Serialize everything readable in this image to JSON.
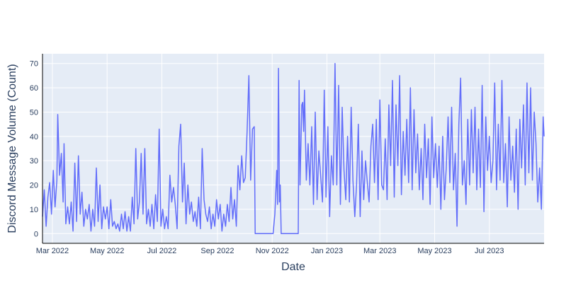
{
  "chart_data": {
    "type": "line",
    "title": "",
    "xlabel": "Date",
    "ylabel": "Discord Message Volume (Count)",
    "x_start": "2022-02-18",
    "x_end": "2023-08-31",
    "ylim": [
      -4,
      74
    ],
    "x_ticks": [
      {
        "date": "2022-03-01",
        "label": "Mar 2022"
      },
      {
        "date": "2022-05-01",
        "label": "May 2022"
      },
      {
        "date": "2022-07-01",
        "label": "Jul 2022"
      },
      {
        "date": "2022-09-01",
        "label": "Sep 2022"
      },
      {
        "date": "2022-11-01",
        "label": "Nov 2022"
      },
      {
        "date": "2023-01-01",
        "label": "Jan 2023"
      },
      {
        "date": "2023-03-01",
        "label": "Mar 2023"
      },
      {
        "date": "2023-05-01",
        "label": "May 2023"
      },
      {
        "date": "2023-07-01",
        "label": "Jul 2023"
      }
    ],
    "y_ticks": [
      0,
      10,
      20,
      30,
      40,
      50,
      60,
      70
    ],
    "grid": true,
    "line_color": "#636efa",
    "plot_bg": "#e5ecf6",
    "series": [
      {
        "name": "",
        "points": [
          [
            "2022-02-18",
            7
          ],
          [
            "2022-02-20",
            18
          ],
          [
            "2022-02-22",
            3
          ],
          [
            "2022-02-24",
            15
          ],
          [
            "2022-02-26",
            21
          ],
          [
            "2022-02-28",
            8
          ],
          [
            "2022-03-02",
            26
          ],
          [
            "2022-03-04",
            11
          ],
          [
            "2022-03-06",
            22
          ],
          [
            "2022-03-07",
            49
          ],
          [
            "2022-03-09",
            24
          ],
          [
            "2022-03-11",
            33
          ],
          [
            "2022-03-13",
            13
          ],
          [
            "2022-03-14",
            37
          ],
          [
            "2022-03-16",
            4
          ],
          [
            "2022-03-18",
            11
          ],
          [
            "2022-03-20",
            4
          ],
          [
            "2022-03-22",
            13
          ],
          [
            "2022-03-24",
            1
          ],
          [
            "2022-03-26",
            29
          ],
          [
            "2022-03-28",
            5
          ],
          [
            "2022-03-30",
            32
          ],
          [
            "2022-04-01",
            8
          ],
          [
            "2022-04-03",
            17
          ],
          [
            "2022-04-05",
            3
          ],
          [
            "2022-04-07",
            10
          ],
          [
            "2022-04-09",
            6
          ],
          [
            "2022-04-11",
            12
          ],
          [
            "2022-04-13",
            1
          ],
          [
            "2022-04-15",
            10
          ],
          [
            "2022-04-17",
            3
          ],
          [
            "2022-04-19",
            27
          ],
          [
            "2022-04-21",
            5
          ],
          [
            "2022-04-23",
            20
          ],
          [
            "2022-04-25",
            2
          ],
          [
            "2022-04-27",
            11
          ],
          [
            "2022-04-29",
            6
          ],
          [
            "2022-05-01",
            11
          ],
          [
            "2022-05-03",
            2
          ],
          [
            "2022-05-05",
            14
          ],
          [
            "2022-05-07",
            3
          ],
          [
            "2022-05-09",
            5
          ],
          [
            "2022-05-11",
            2
          ],
          [
            "2022-05-13",
            4
          ],
          [
            "2022-05-15",
            1
          ],
          [
            "2022-05-17",
            8
          ],
          [
            "2022-05-19",
            2
          ],
          [
            "2022-05-21",
            9
          ],
          [
            "2022-05-23",
            1
          ],
          [
            "2022-05-25",
            7
          ],
          [
            "2022-05-27",
            1
          ],
          [
            "2022-05-29",
            15
          ],
          [
            "2022-05-31",
            4
          ],
          [
            "2022-06-02",
            35
          ],
          [
            "2022-06-04",
            6
          ],
          [
            "2022-06-06",
            13
          ],
          [
            "2022-06-08",
            33
          ],
          [
            "2022-06-10",
            8
          ],
          [
            "2022-06-12",
            35
          ],
          [
            "2022-06-14",
            4
          ],
          [
            "2022-06-16",
            10
          ],
          [
            "2022-06-18",
            3
          ],
          [
            "2022-06-20",
            12
          ],
          [
            "2022-06-22",
            2
          ],
          [
            "2022-06-24",
            16
          ],
          [
            "2022-06-26",
            5
          ],
          [
            "2022-06-28",
            43
          ],
          [
            "2022-06-30",
            3
          ],
          [
            "2022-07-02",
            10
          ],
          [
            "2022-07-04",
            2
          ],
          [
            "2022-07-06",
            7
          ],
          [
            "2022-07-08",
            2
          ],
          [
            "2022-07-10",
            24
          ],
          [
            "2022-07-12",
            13
          ],
          [
            "2022-07-14",
            19
          ],
          [
            "2022-07-16",
            12
          ],
          [
            "2022-07-18",
            2
          ],
          [
            "2022-07-20",
            36
          ],
          [
            "2022-07-22",
            45
          ],
          [
            "2022-07-24",
            13
          ],
          [
            "2022-07-26",
            29
          ],
          [
            "2022-07-28",
            4
          ],
          [
            "2022-07-30",
            20
          ],
          [
            "2022-08-01",
            8
          ],
          [
            "2022-08-03",
            13
          ],
          [
            "2022-08-05",
            5
          ],
          [
            "2022-08-07",
            9
          ],
          [
            "2022-08-09",
            3
          ],
          [
            "2022-08-11",
            15
          ],
          [
            "2022-08-13",
            2
          ],
          [
            "2022-08-15",
            35
          ],
          [
            "2022-08-17",
            14
          ],
          [
            "2022-08-19",
            8
          ],
          [
            "2022-08-21",
            5
          ],
          [
            "2022-08-23",
            11
          ],
          [
            "2022-08-25",
            2
          ],
          [
            "2022-08-27",
            8
          ],
          [
            "2022-08-29",
            3
          ],
          [
            "2022-08-31",
            14
          ],
          [
            "2022-09-02",
            6
          ],
          [
            "2022-09-04",
            12
          ],
          [
            "2022-09-06",
            1
          ],
          [
            "2022-09-08",
            8
          ],
          [
            "2022-09-10",
            3
          ],
          [
            "2022-09-12",
            12
          ],
          [
            "2022-09-14",
            5
          ],
          [
            "2022-09-16",
            19
          ],
          [
            "2022-09-18",
            6
          ],
          [
            "2022-09-20",
            14
          ],
          [
            "2022-09-22",
            3
          ],
          [
            "2022-09-24",
            28
          ],
          [
            "2022-09-26",
            18
          ],
          [
            "2022-09-28",
            32
          ],
          [
            "2022-09-30",
            21
          ],
          [
            "2022-10-02",
            23
          ],
          [
            "2022-10-04",
            42
          ],
          [
            "2022-10-06",
            65
          ],
          [
            "2022-10-08",
            22
          ],
          [
            "2022-10-10",
            43
          ],
          [
            "2022-10-12",
            44
          ],
          [
            "2022-10-13",
            0
          ],
          [
            "2022-10-20",
            0
          ],
          [
            "2022-10-27",
            0
          ],
          [
            "2022-11-02",
            0
          ],
          [
            "2022-11-04",
            8
          ],
          [
            "2022-11-06",
            26
          ],
          [
            "2022-11-07",
            12
          ],
          [
            "2022-11-08",
            68
          ],
          [
            "2022-11-09",
            13
          ],
          [
            "2022-11-10",
            20
          ],
          [
            "2022-11-11",
            0
          ],
          [
            "2022-11-20",
            0
          ],
          [
            "2022-11-30",
            0
          ],
          [
            "2022-12-01",
            63
          ],
          [
            "2022-12-02",
            20
          ],
          [
            "2022-12-04",
            53
          ],
          [
            "2022-12-05",
            54
          ],
          [
            "2022-12-06",
            42
          ],
          [
            "2022-12-07",
            59
          ],
          [
            "2022-12-09",
            22
          ],
          [
            "2022-12-11",
            37
          ],
          [
            "2022-12-13",
            20
          ],
          [
            "2022-12-15",
            44
          ],
          [
            "2022-12-17",
            12
          ],
          [
            "2022-12-19",
            50
          ],
          [
            "2022-12-21",
            14
          ],
          [
            "2022-12-23",
            34
          ],
          [
            "2022-12-25",
            24
          ],
          [
            "2022-12-27",
            13
          ],
          [
            "2022-12-29",
            59
          ],
          [
            "2022-12-31",
            15
          ],
          [
            "2023-01-02",
            44
          ],
          [
            "2023-01-04",
            7
          ],
          [
            "2023-01-06",
            32
          ],
          [
            "2023-01-08",
            20
          ],
          [
            "2023-01-10",
            70
          ],
          [
            "2023-01-12",
            20
          ],
          [
            "2023-01-14",
            61
          ],
          [
            "2023-01-16",
            12
          ],
          [
            "2023-01-18",
            52
          ],
          [
            "2023-01-20",
            26
          ],
          [
            "2023-01-22",
            14
          ],
          [
            "2023-01-24",
            40
          ],
          [
            "2023-01-26",
            13
          ],
          [
            "2023-01-28",
            52
          ],
          [
            "2023-01-30",
            22
          ],
          [
            "2023-02-01",
            7
          ],
          [
            "2023-02-03",
            20
          ],
          [
            "2023-02-05",
            45
          ],
          [
            "2023-02-07",
            7
          ],
          [
            "2023-02-09",
            34
          ],
          [
            "2023-02-11",
            14
          ],
          [
            "2023-02-13",
            30
          ],
          [
            "2023-02-15",
            21
          ],
          [
            "2023-02-17",
            13
          ],
          [
            "2023-02-19",
            36
          ],
          [
            "2023-02-21",
            45
          ],
          [
            "2023-02-23",
            21
          ],
          [
            "2023-02-25",
            47
          ],
          [
            "2023-02-27",
            14
          ],
          [
            "2023-03-01",
            55
          ],
          [
            "2023-03-03",
            20
          ],
          [
            "2023-03-05",
            18
          ],
          [
            "2023-03-07",
            39
          ],
          [
            "2023-03-09",
            14
          ],
          [
            "2023-03-11",
            53
          ],
          [
            "2023-03-13",
            28
          ],
          [
            "2023-03-15",
            63
          ],
          [
            "2023-03-17",
            15
          ],
          [
            "2023-03-19",
            53
          ],
          [
            "2023-03-21",
            28
          ],
          [
            "2023-03-23",
            65
          ],
          [
            "2023-03-25",
            16
          ],
          [
            "2023-03-27",
            42
          ],
          [
            "2023-03-29",
            24
          ],
          [
            "2023-03-31",
            47
          ],
          [
            "2023-04-02",
            21
          ],
          [
            "2023-04-04",
            60
          ],
          [
            "2023-04-06",
            18
          ],
          [
            "2023-04-08",
            51
          ],
          [
            "2023-04-10",
            25
          ],
          [
            "2023-04-12",
            41
          ],
          [
            "2023-04-14",
            18
          ],
          [
            "2023-04-16",
            35
          ],
          [
            "2023-04-18",
            14
          ],
          [
            "2023-04-20",
            45
          ],
          [
            "2023-04-22",
            23
          ],
          [
            "2023-04-24",
            39
          ],
          [
            "2023-04-26",
            12
          ],
          [
            "2023-04-28",
            48
          ],
          [
            "2023-04-30",
            23
          ],
          [
            "2023-05-02",
            37
          ],
          [
            "2023-05-04",
            19
          ],
          [
            "2023-05-06",
            36
          ],
          [
            "2023-05-08",
            10
          ],
          [
            "2023-05-10",
            40
          ],
          [
            "2023-05-12",
            14
          ],
          [
            "2023-05-14",
            27
          ],
          [
            "2023-05-16",
            48
          ],
          [
            "2023-05-18",
            21
          ],
          [
            "2023-05-20",
            52
          ],
          [
            "2023-05-22",
            18
          ],
          [
            "2023-05-24",
            33
          ],
          [
            "2023-05-26",
            3
          ],
          [
            "2023-05-28",
            45
          ],
          [
            "2023-05-30",
            64
          ],
          [
            "2023-06-01",
            20
          ],
          [
            "2023-06-03",
            30
          ],
          [
            "2023-06-05",
            12
          ],
          [
            "2023-06-07",
            47
          ],
          [
            "2023-06-09",
            20
          ],
          [
            "2023-06-11",
            51
          ],
          [
            "2023-06-13",
            25
          ],
          [
            "2023-06-15",
            52
          ],
          [
            "2023-06-17",
            18
          ],
          [
            "2023-06-19",
            43
          ],
          [
            "2023-06-21",
            19
          ],
          [
            "2023-06-23",
            61
          ],
          [
            "2023-06-25",
            9
          ],
          [
            "2023-06-27",
            48
          ],
          [
            "2023-06-29",
            26
          ],
          [
            "2023-07-01",
            40
          ],
          [
            "2023-07-03",
            21
          ],
          [
            "2023-07-05",
            30
          ],
          [
            "2023-07-07",
            62
          ],
          [
            "2023-07-09",
            18
          ],
          [
            "2023-07-11",
            45
          ],
          [
            "2023-07-13",
            22
          ],
          [
            "2023-07-15",
            63
          ],
          [
            "2023-07-17",
            21
          ],
          [
            "2023-07-19",
            37
          ],
          [
            "2023-07-21",
            11
          ],
          [
            "2023-07-23",
            48
          ],
          [
            "2023-07-25",
            22
          ],
          [
            "2023-07-27",
            36
          ],
          [
            "2023-07-29",
            17
          ],
          [
            "2023-07-31",
            43
          ],
          [
            "2023-08-02",
            10
          ],
          [
            "2023-08-04",
            47
          ],
          [
            "2023-08-06",
            27
          ],
          [
            "2023-08-08",
            53
          ],
          [
            "2023-08-10",
            20
          ],
          [
            "2023-08-12",
            62
          ],
          [
            "2023-08-14",
            25
          ],
          [
            "2023-08-16",
            60
          ],
          [
            "2023-08-18",
            22
          ],
          [
            "2023-08-20",
            50
          ],
          [
            "2023-08-22",
            37
          ],
          [
            "2023-08-24",
            13
          ],
          [
            "2023-08-26",
            27
          ],
          [
            "2023-08-28",
            10
          ],
          [
            "2023-08-30",
            48
          ],
          [
            "2023-08-31",
            40
          ]
        ]
      }
    ]
  }
}
